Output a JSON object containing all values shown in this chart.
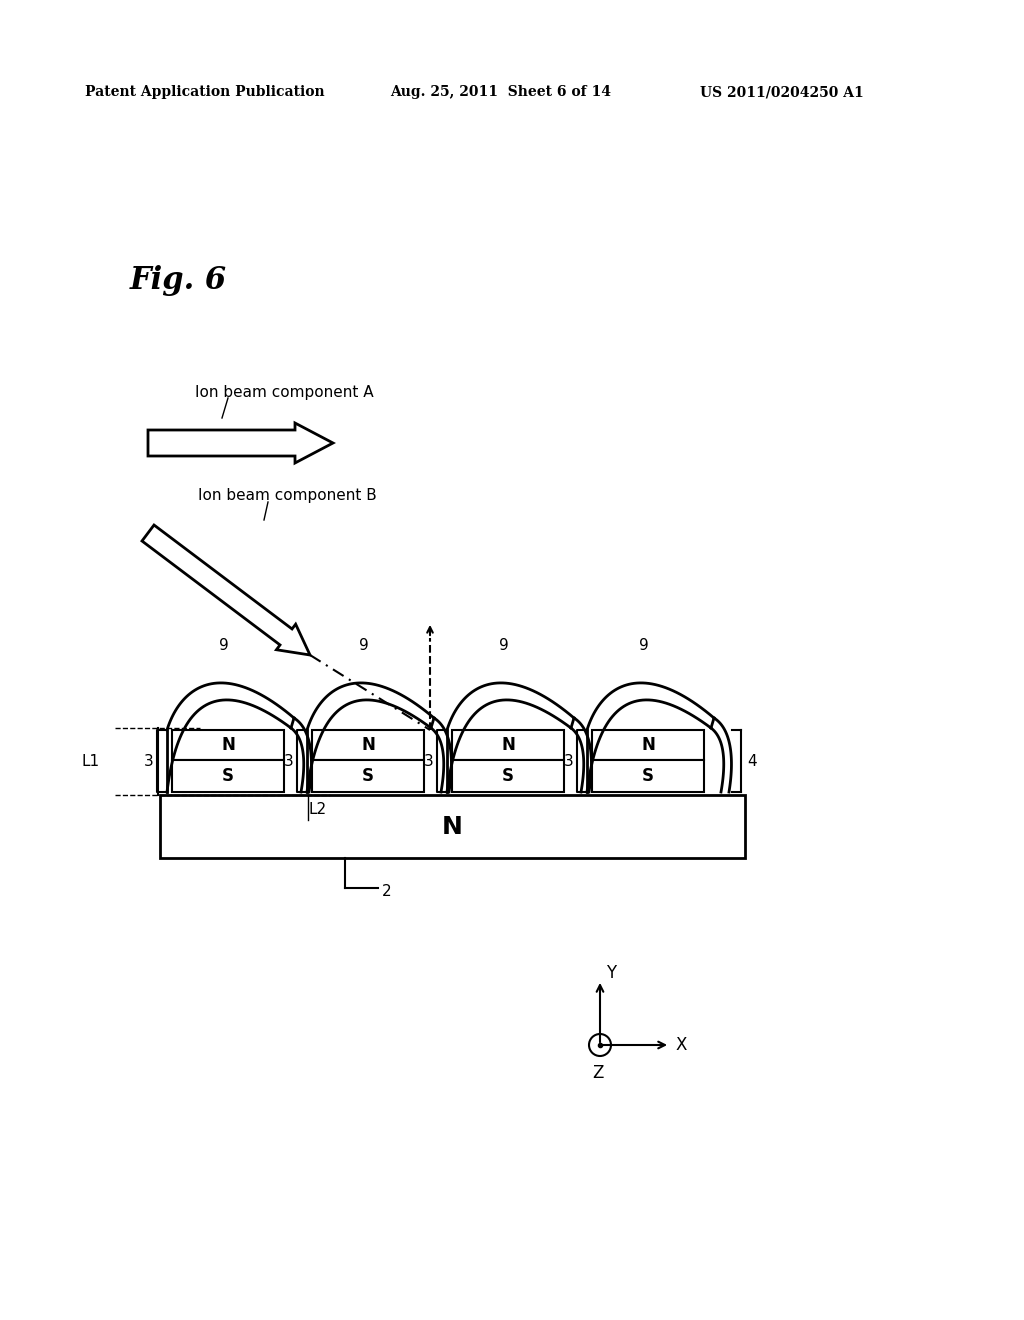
{
  "background_color": "#ffffff",
  "header_left": "Patent Application Publication",
  "header_center": "Aug. 25, 2011  Sheet 6 of 14",
  "header_right": "US 2011/0204250 A1",
  "fig_label": "Fig. 6",
  "label_ion_beam_A": "Ion beam component A",
  "label_ion_beam_B": "Ion beam component B",
  "label_N_big": "N",
  "label_2": "2",
  "label_4": "4",
  "label_L1": "L1",
  "label_L2": "L2"
}
